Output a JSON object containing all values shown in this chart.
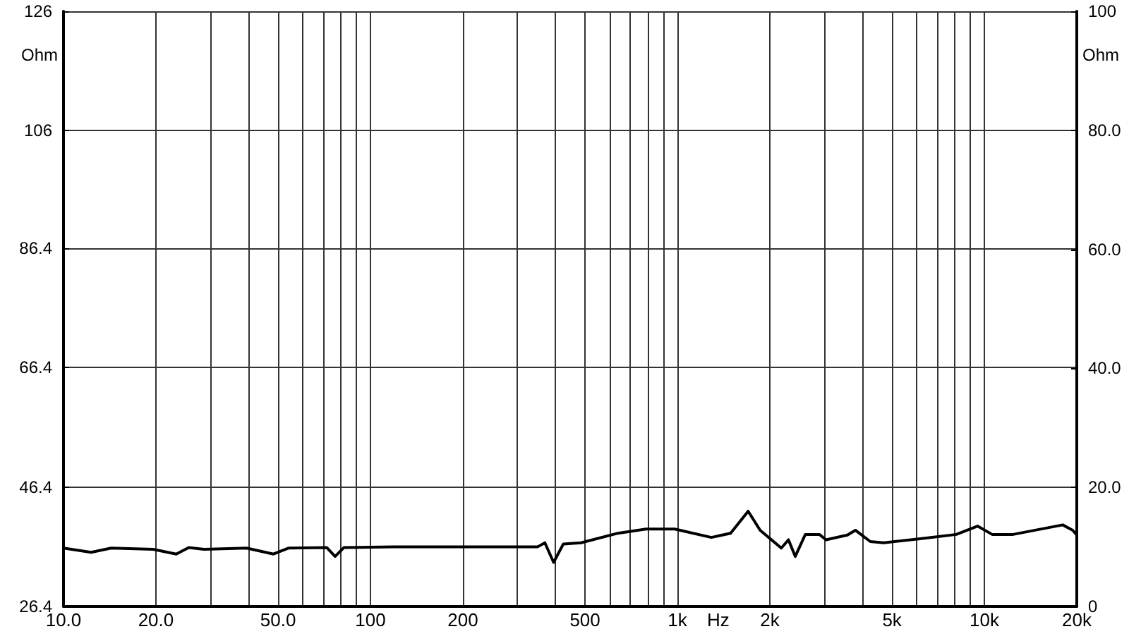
{
  "chart_data": {
    "type": "line",
    "xlabel": "Hz",
    "ylabel": "Ohm",
    "y2label": "Ohm",
    "log": "x",
    "grid": true,
    "marker": "none",
    "line_style": "solid",
    "xlim": [
      10,
      20000
    ],
    "xticks": [
      {
        "value": 10,
        "label": "10.0"
      },
      {
        "value": 20,
        "label": "20.0"
      },
      {
        "value": 30,
        "label": null
      },
      {
        "value": 40,
        "label": null
      },
      {
        "value": 50,
        "label": "50.0"
      },
      {
        "value": 60,
        "label": null
      },
      {
        "value": 70,
        "label": null
      },
      {
        "value": 80,
        "label": null
      },
      {
        "value": 90,
        "label": null
      },
      100,
      200,
      {
        "value": 300,
        "label": null
      },
      {
        "value": 400,
        "label": null
      },
      500,
      {
        "value": 600,
        "label": null
      },
      {
        "value": 700,
        "label": null
      },
      {
        "value": 800,
        "label": null
      },
      {
        "value": 900,
        "label": null
      },
      {
        "value": 1000,
        "label": "1k"
      },
      {
        "value": 2000,
        "label": "2k"
      },
      {
        "value": 3000,
        "label": null
      },
      {
        "value": 4000,
        "label": null
      },
      {
        "value": 5000,
        "label": "5k"
      },
      {
        "value": 6000,
        "label": null
      },
      {
        "value": 7000,
        "label": null
      },
      {
        "value": 8000,
        "label": null
      },
      {
        "value": 9000,
        "label": null
      },
      {
        "value": 10000,
        "label": "10k"
      },
      {
        "value": 20000,
        "label": "20k"
      }
    ],
    "ylim": [
      26.4,
      126
    ],
    "yticks": [
      26.4,
      46.4,
      66.4,
      86.4,
      106,
      126
    ],
    "y2lim": [
      0,
      100
    ],
    "y2ticks": [
      0,
      {
        "value": 20,
        "label": "20.0"
      },
      {
        "value": 40,
        "label": "40.0"
      },
      {
        "value": 60,
        "label": "60.0"
      },
      {
        "value": 80,
        "label": "80.0"
      },
      100
    ],
    "series": [
      {
        "color": "#000000",
        "axis": "y2",
        "x": [
          10,
          12.3,
          14.3,
          19.6,
          23.3,
          25.6,
          28.7,
          39.5,
          48.3,
          54,
          72,
          76.7,
          82,
          118,
          350,
          370,
          395,
          425,
          485,
          640,
          790,
          980,
          1290,
          1490,
          1700,
          1860,
          2180,
          2300,
          2420,
          2610,
          2900,
          3050,
          3580,
          3800,
          4250,
          4700,
          6250,
          8100,
          9500,
          10600,
          12400,
          18000,
          19400,
          20000
        ],
        "values": [
          9.8,
          9.1,
          9.8,
          9.6,
          8.8,
          9.9,
          9.6,
          9.8,
          8.8,
          9.8,
          9.9,
          8.4,
          9.9,
          10.0,
          10.0,
          10.7,
          7.4,
          10.5,
          10.7,
          12.3,
          13.0,
          13.0,
          11.6,
          12.3,
          16.0,
          12.8,
          9.8,
          11.2,
          8.4,
          12.1,
          12.1,
          11.2,
          12.0,
          12.8,
          10.9,
          10.7,
          11.4,
          12.1,
          13.5,
          12.1,
          12.1,
          13.7,
          12.8,
          12.0
        ]
      }
    ]
  }
}
